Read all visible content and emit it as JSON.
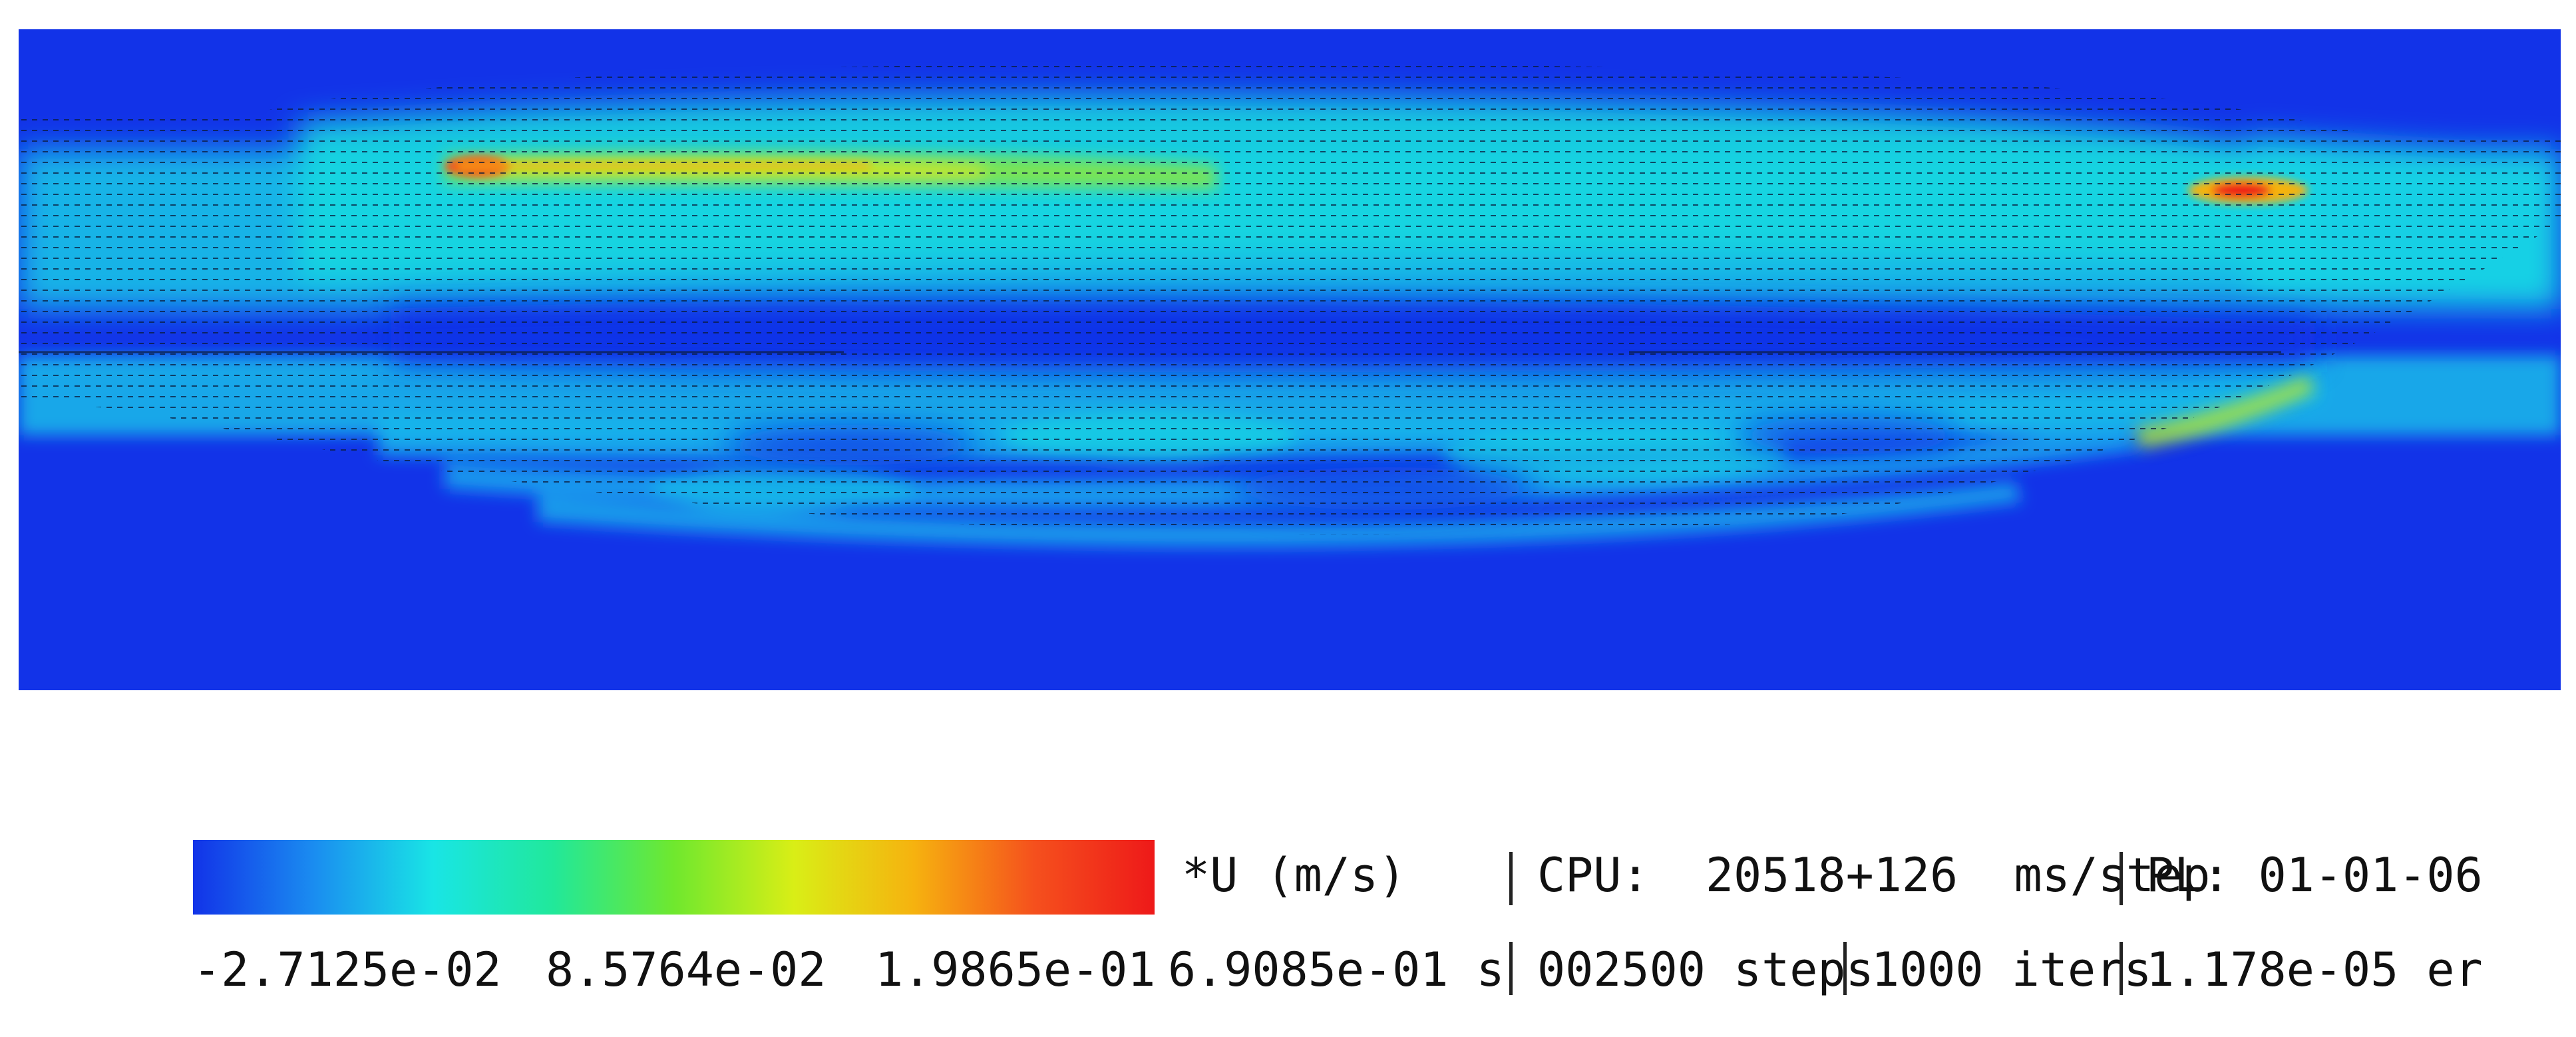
{
  "visualization": {
    "colormap": [
      "#1233e8",
      "#1a8cf0",
      "#19e5e5",
      "#21e89a",
      "#6fe82e",
      "#d9ee16",
      "#f6b20f",
      "#f5501d",
      "#ee1919"
    ],
    "background_color": "#1233e8"
  },
  "legend": {
    "variable_label": "*U (m/s)",
    "tick_min": "-2.7125e-02",
    "tick_mid": "8.5764e-02",
    "tick_max": "1.9865e-01",
    "sim_time": "6.9085e-01 s",
    "cpu": "CPU:  20518+126  ms/step",
    "pl": "PL: 01-01-06",
    "steps": "002500 steps",
    "iters": "1000 iters",
    "error": "1.178e-05 er"
  }
}
